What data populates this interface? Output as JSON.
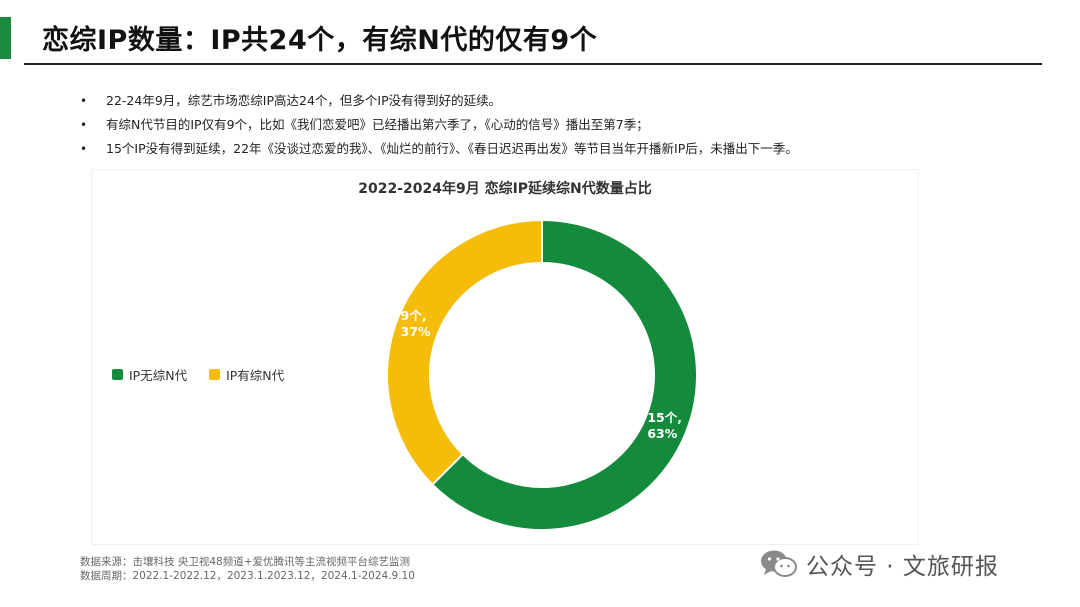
{
  "header": {
    "title": "恋综IP数量：IP共24个，有综N代的仅有9个",
    "accent_color": "#1a8a3c"
  },
  "bullets": [
    "22-24年9月，综艺市场恋综IP高达24个，但多个IP没有得到好的延续。",
    "有综N代节目的IP仅有9个，比如《我们恋爱吧》已经播出第六季了，《心动的信号》播出至第7季；",
    "15个IP没有得到延续，22年《没谈过恋爱的我》、《灿烂的前行》、《春日迟迟再出发》等节目当年开播新IP后，未播出下一季。"
  ],
  "bullet_symbol": "•",
  "chart_data": {
    "type": "pie",
    "title": "2022-2024年9月 恋综IP延续综N代数量占比",
    "donut": true,
    "legend_position": "left",
    "series": [
      {
        "name": "IP无综N代",
        "value": 15,
        "percent": "63%",
        "label_line1": "15个,",
        "label_line2": "63%",
        "color": "#148a3c"
      },
      {
        "name": "IP有综N代",
        "value": 9,
        "percent": "37%",
        "label_line1": "9个,",
        "label_line2": "37%",
        "color": "#f5bd0a"
      }
    ]
  },
  "footer": {
    "source": "数据来源：击壤科技  央卫视48频道+爱优腾讯等主流视频平台综艺监测",
    "period": "数据周期：2022.1-2022.12，2023.1.2023.12，2024.1-2024.9.10"
  },
  "watermark": {
    "icon": "wechat-icon",
    "text": "公众号 · 文旅研报"
  }
}
